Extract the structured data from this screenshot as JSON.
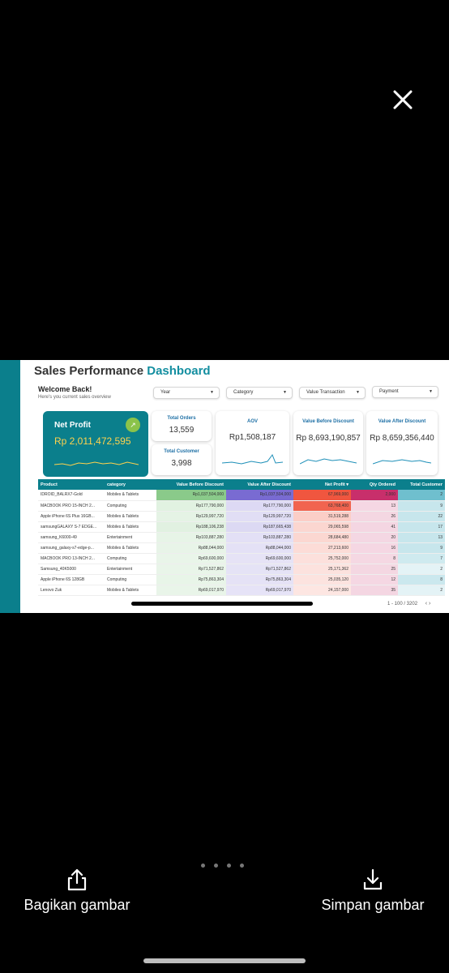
{
  "viewer": {
    "close_icon": "close-icon",
    "actions": {
      "share_label": "Bagikan gambar",
      "save_label": "Simpan gambar"
    },
    "page_indicator": {
      "count": 4
    }
  },
  "dashboard": {
    "title_main": "Sales Performance",
    "title_accent": "Dashboard",
    "welcome": "Welcome Back!",
    "welcome_sub": "Here's you current sales overview",
    "filters": {
      "year": "Year",
      "category": "Category",
      "value_transaction": "Value Transaction",
      "payment": "Payment"
    },
    "net_profit": {
      "label": "Net Profit",
      "value": "Rp 2,011,472,595",
      "icon": "growth-icon"
    },
    "total_orders": {
      "label": "Total Orders",
      "value": "13,559"
    },
    "total_customer": {
      "label": "Total Customer",
      "value": "3,998"
    },
    "aov": {
      "label": "AOV",
      "value": "Rp1,508,187"
    },
    "value_before_discount": {
      "label": "Value Before Discount",
      "value": "Rp 8,693,190,857"
    },
    "value_after_discount": {
      "label": "Value After Discount",
      "value": "Rp 8,659,356,440"
    },
    "table": {
      "headers": [
        "Product",
        "category",
        "Value Before Discount",
        "Value After Discount",
        "Net Profit ▾",
        "Qty Ordered",
        "Total Customer"
      ],
      "rows": [
        [
          "IDROID_BALRX7-Gold",
          "Mobiles & Tablets",
          "Rp1,037,504,000",
          "Rp1,037,504,000",
          "67,969,000",
          "2,000",
          "2"
        ],
        [
          "MACBOOK PRO 15-INCH 2...",
          "Computing",
          "Rp177,790,000",
          "Rp177,790,000",
          "63,768,400",
          "13",
          "9"
        ],
        [
          "Apple iPhone 6S Plus 16GB...",
          "Mobiles & Tablets",
          "Rp129,997,720",
          "Rp129,997,720",
          "31,519,288",
          "26",
          "22"
        ],
        [
          "samsungGALAXY S-7 EDGE...",
          "Mobiles & Tablets",
          "Rp188,106,238",
          "Rp187,665,438",
          "29,065,598",
          "41",
          "17"
        ],
        [
          "samsung_K6000-49",
          "Entertainment",
          "Rp103,887,280",
          "Rp103,887,280",
          "28,684,480",
          "20",
          "13"
        ],
        [
          "samsung_galaxy-s7-edge-p...",
          "Mobiles & Tablets",
          "Rp88,044,000",
          "Rp88,044,000",
          "27,213,600",
          "16",
          "9"
        ],
        [
          "MACBOOK PRO 13-INCH 2...",
          "Computing",
          "Rp69,600,000",
          "Rp69,600,000",
          "25,752,000",
          "8",
          "7"
        ],
        [
          "Samsung_40K5000",
          "Entertainment",
          "Rp71,527,862",
          "Rp71,527,862",
          "25,171,362",
          "25",
          "2"
        ],
        [
          "Apple iPhone 6S 128GB",
          "Computing",
          "Rp75,863,304",
          "Rp75,863,304",
          "25,035,120",
          "12",
          "8"
        ],
        [
          "Lenovo Zuk",
          "Mobiles & Tablets",
          "Rp69,017,970",
          "Rp69,017,970",
          "24,157,000",
          "35",
          "2"
        ]
      ],
      "pager": "1 - 100 / 3202",
      "pager_prev": "‹",
      "pager_next": "›"
    }
  },
  "colors": {
    "teal": "#0b7f8c",
    "accent_blue": "#138ea0",
    "net_profit_value": "#ffd24d",
    "before_discount_bar": "#7dc47d",
    "after_discount_bar": "#6a5acd",
    "net_profit_bar": "#f0563f",
    "qty_bar": "#c2185b",
    "customer_bar": "#5fb8c9"
  }
}
